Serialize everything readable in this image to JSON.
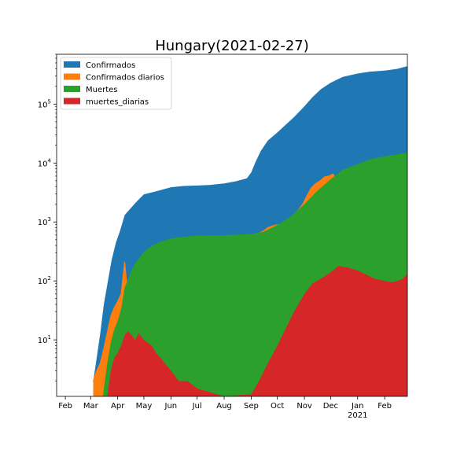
{
  "chart_data": {
    "type": "area",
    "title": "Hungary(2021-02-27)",
    "xlabel": "",
    "ylabel": "",
    "yscale": "log",
    "ylim": [
      1.1,
      700000
    ],
    "xlim": [
      "2020-01-22",
      "2021-02-27"
    ],
    "grid": false,
    "legend_placement": "upper-left",
    "x_ticks": [
      {
        "date": "2020-02-01",
        "label": "Feb"
      },
      {
        "date": "2020-03-01",
        "label": "Mar"
      },
      {
        "date": "2020-04-01",
        "label": "Apr"
      },
      {
        "date": "2020-05-01",
        "label": "May"
      },
      {
        "date": "2020-06-01",
        "label": "Jun"
      },
      {
        "date": "2020-07-01",
        "label": "Jul"
      },
      {
        "date": "2020-08-01",
        "label": "Aug"
      },
      {
        "date": "2020-09-01",
        "label": "Sep"
      },
      {
        "date": "2020-10-01",
        "label": "Oct"
      },
      {
        "date": "2020-11-01",
        "label": "Nov"
      },
      {
        "date": "2020-12-01",
        "label": "Dec"
      },
      {
        "date": "2021-01-01",
        "label": "Jan"
      },
      {
        "date": "2021-02-01",
        "label": "Feb"
      }
    ],
    "x_year_label": {
      "date": "2021-01-01",
      "label": "2021"
    },
    "y_ticks": [
      {
        "value": 10,
        "label": "10^1"
      },
      {
        "value": 100,
        "label": "10^2"
      },
      {
        "value": 1000,
        "label": "10^3"
      },
      {
        "value": 10000,
        "label": "10^4"
      },
      {
        "value": 100000,
        "label": "10^5"
      }
    ],
    "series": [
      {
        "name": "Confirmados",
        "color": "#1f77b4",
        "kind": "area",
        "points": [
          [
            "2020-03-04",
            2
          ],
          [
            "2020-03-08",
            5
          ],
          [
            "2020-03-12",
            13
          ],
          [
            "2020-03-16",
            39
          ],
          [
            "2020-03-20",
            85
          ],
          [
            "2020-03-25",
            226
          ],
          [
            "2020-03-30",
            447
          ],
          [
            "2020-04-04",
            733
          ],
          [
            "2020-04-09",
            1310
          ],
          [
            "2020-04-15",
            1652
          ],
          [
            "2020-04-22",
            2168
          ],
          [
            "2020-05-01",
            2942
          ],
          [
            "2020-05-15",
            3313
          ],
          [
            "2020-06-01",
            3876
          ],
          [
            "2020-06-15",
            4077
          ],
          [
            "2020-07-01",
            4155
          ],
          [
            "2020-07-15",
            4247
          ],
          [
            "2020-08-01",
            4512
          ],
          [
            "2020-08-15",
            4916
          ],
          [
            "2020-08-27",
            5500
          ],
          [
            "2020-09-01",
            6900
          ],
          [
            "2020-09-06",
            10500
          ],
          [
            "2020-09-12",
            16000
          ],
          [
            "2020-09-20",
            24000
          ],
          [
            "2020-10-01",
            33000
          ],
          [
            "2020-10-10",
            44000
          ],
          [
            "2020-10-20",
            60000
          ],
          [
            "2020-11-01",
            92000
          ],
          [
            "2020-11-10",
            130000
          ],
          [
            "2020-11-20",
            180000
          ],
          [
            "2020-12-01",
            230000
          ],
          [
            "2020-12-15",
            290000
          ],
          [
            "2021-01-01",
            330000
          ],
          [
            "2021-01-15",
            355000
          ],
          [
            "2021-02-01",
            370000
          ],
          [
            "2021-02-15",
            395000
          ],
          [
            "2021-02-27",
            440000
          ]
        ]
      },
      {
        "name": "Confirmados diarios",
        "color": "#ff7f0e",
        "kind": "area-line",
        "points": [
          [
            "2020-03-04",
            2
          ],
          [
            "2020-03-08",
            3
          ],
          [
            "2020-03-12",
            4
          ],
          [
            "2020-03-16",
            7
          ],
          [
            "2020-03-20",
            13
          ],
          [
            "2020-03-24",
            25
          ],
          [
            "2020-03-28",
            35
          ],
          [
            "2020-04-01",
            45
          ],
          [
            "2020-04-05",
            60
          ],
          [
            "2020-04-09",
            210
          ],
          [
            "2020-04-12",
            70
          ],
          [
            "2020-04-16",
            120
          ],
          [
            "2020-04-20",
            90
          ],
          [
            "2020-04-24",
            60
          ],
          [
            "2020-04-27",
            160
          ],
          [
            "2020-05-01",
            30
          ],
          [
            "2020-05-05",
            50
          ],
          [
            "2020-05-09",
            40
          ],
          [
            "2020-05-13",
            25
          ],
          [
            "2020-05-17",
            35
          ],
          [
            "2020-05-21",
            20
          ],
          [
            "2020-05-25",
            30
          ],
          [
            "2020-05-29",
            15
          ],
          [
            "2020-06-02",
            12
          ],
          [
            "2020-06-06",
            20
          ],
          [
            "2020-06-10",
            6
          ],
          [
            "2020-06-14",
            15
          ],
          [
            "2020-06-18",
            10
          ],
          [
            "2020-06-22",
            3
          ],
          [
            "2020-06-26",
            8
          ],
          [
            "2020-06-30",
            5
          ],
          [
            "2020-07-04",
            3
          ],
          [
            "2020-07-08",
            8
          ],
          [
            "2020-07-12",
            5
          ],
          [
            "2020-07-16",
            12
          ],
          [
            "2020-07-20",
            8
          ],
          [
            "2020-07-24",
            20
          ],
          [
            "2020-07-28",
            12
          ],
          [
            "2020-08-01",
            25
          ],
          [
            "2020-08-05",
            15
          ],
          [
            "2020-08-09",
            30
          ],
          [
            "2020-08-13",
            15
          ],
          [
            "2020-08-17",
            40
          ],
          [
            "2020-08-21",
            30
          ],
          [
            "2020-08-25",
            60
          ],
          [
            "2020-08-29",
            120
          ],
          [
            "2020-09-02",
            450
          ],
          [
            "2020-09-06",
            500
          ],
          [
            "2020-09-10",
            650
          ],
          [
            "2020-09-15",
            700
          ],
          [
            "2020-09-20",
            800
          ],
          [
            "2020-09-25",
            850
          ],
          [
            "2020-10-01",
            900
          ],
          [
            "2020-10-05",
            700
          ],
          [
            "2020-10-10",
            1000
          ],
          [
            "2020-10-15",
            1100
          ],
          [
            "2020-10-20",
            1300
          ],
          [
            "2020-10-25",
            1600
          ],
          [
            "2020-10-30",
            2000
          ],
          [
            "2020-11-04",
            2800
          ],
          [
            "2020-11-09",
            3800
          ],
          [
            "2020-11-14",
            4500
          ],
          [
            "2020-11-19",
            5000
          ],
          [
            "2020-11-24",
            5800
          ],
          [
            "2020-11-29",
            6000
          ],
          [
            "2020-12-04",
            6500
          ],
          [
            "2020-12-09",
            4000
          ],
          [
            "2020-12-13",
            3500
          ],
          [
            "2020-12-17",
            4500
          ],
          [
            "2020-12-21",
            2500
          ],
          [
            "2020-12-25",
            800
          ],
          [
            "2020-12-29",
            2500
          ],
          [
            "2021-01-03",
            1800
          ],
          [
            "2021-01-07",
            1200
          ],
          [
            "2021-01-11",
            1500
          ],
          [
            "2021-01-15",
            900
          ],
          [
            "2021-01-19",
            700
          ],
          [
            "2021-01-23",
            1100
          ],
          [
            "2021-01-27",
            800
          ],
          [
            "2021-01-31",
            900
          ],
          [
            "2021-02-04",
            1200
          ],
          [
            "2021-02-08",
            1400
          ],
          [
            "2021-02-12",
            1600
          ],
          [
            "2021-02-16",
            1900
          ],
          [
            "2021-02-20",
            2400
          ],
          [
            "2021-02-24",
            3200
          ],
          [
            "2021-02-27",
            5000
          ]
        ]
      },
      {
        "name": "Muertes",
        "color": "#2ca02c",
        "kind": "area",
        "points": [
          [
            "2020-03-15",
            1
          ],
          [
            "2020-03-20",
            4
          ],
          [
            "2020-03-24",
            9
          ],
          [
            "2020-03-28",
            15
          ],
          [
            "2020-04-01",
            21
          ],
          [
            "2020-04-05",
            34
          ],
          [
            "2020-04-09",
            77
          ],
          [
            "2020-04-13",
            109
          ],
          [
            "2020-04-17",
            156
          ],
          [
            "2020-04-21",
            199
          ],
          [
            "2020-04-25",
            239
          ],
          [
            "2020-05-01",
            312
          ],
          [
            "2020-05-10",
            392
          ],
          [
            "2020-05-20",
            462
          ],
          [
            "2020-06-01",
            527
          ],
          [
            "2020-06-15",
            560
          ],
          [
            "2020-07-01",
            589
          ],
          [
            "2020-08-01",
            598
          ],
          [
            "2020-09-01",
            624
          ],
          [
            "2020-09-15",
            680
          ],
          [
            "2020-10-01",
            890
          ],
          [
            "2020-10-15",
            1200
          ],
          [
            "2020-11-01",
            2000
          ],
          [
            "2020-11-15",
            3300
          ],
          [
            "2020-12-01",
            5300
          ],
          [
            "2020-12-15",
            7700
          ],
          [
            "2021-01-01",
            9600
          ],
          [
            "2021-01-15",
            11600
          ],
          [
            "2021-02-01",
            13000
          ],
          [
            "2021-02-15",
            14000
          ],
          [
            "2021-02-27",
            15200
          ]
        ]
      },
      {
        "name": "muertes_diarias",
        "color": "#d62728",
        "kind": "area",
        "points": [
          [
            "2020-03-20",
            1
          ],
          [
            "2020-03-24",
            3
          ],
          [
            "2020-03-28",
            5
          ],
          [
            "2020-04-01",
            6
          ],
          [
            "2020-04-05",
            8
          ],
          [
            "2020-04-09",
            12
          ],
          [
            "2020-04-13",
            14
          ],
          [
            "2020-04-17",
            12
          ],
          [
            "2020-04-21",
            10
          ],
          [
            "2020-04-25",
            13
          ],
          [
            "2020-05-01",
            10
          ],
          [
            "2020-05-05",
            9
          ],
          [
            "2020-05-10",
            8
          ],
          [
            "2020-05-15",
            6
          ],
          [
            "2020-05-20",
            5
          ],
          [
            "2020-05-25",
            4
          ],
          [
            "2020-06-01",
            3
          ],
          [
            "2020-06-10",
            2
          ],
          [
            "2020-06-20",
            2
          ],
          [
            "2020-07-01",
            1.5
          ],
          [
            "2020-08-01",
            1
          ],
          [
            "2020-09-01",
            1.2
          ],
          [
            "2020-09-10",
            2
          ],
          [
            "2020-09-20",
            4
          ],
          [
            "2020-10-01",
            8
          ],
          [
            "2020-10-10",
            15
          ],
          [
            "2020-10-20",
            30
          ],
          [
            "2020-11-01",
            60
          ],
          [
            "2020-11-10",
            90
          ],
          [
            "2020-11-20",
            110
          ],
          [
            "2020-12-01",
            140
          ],
          [
            "2020-12-10",
            180
          ],
          [
            "2020-12-20",
            170
          ],
          [
            "2021-01-01",
            150
          ],
          [
            "2021-01-10",
            130
          ],
          [
            "2021-01-20",
            110
          ],
          [
            "2021-02-01",
            100
          ],
          [
            "2021-02-10",
            95
          ],
          [
            "2021-02-20",
            105
          ],
          [
            "2021-02-27",
            130
          ]
        ]
      }
    ]
  }
}
